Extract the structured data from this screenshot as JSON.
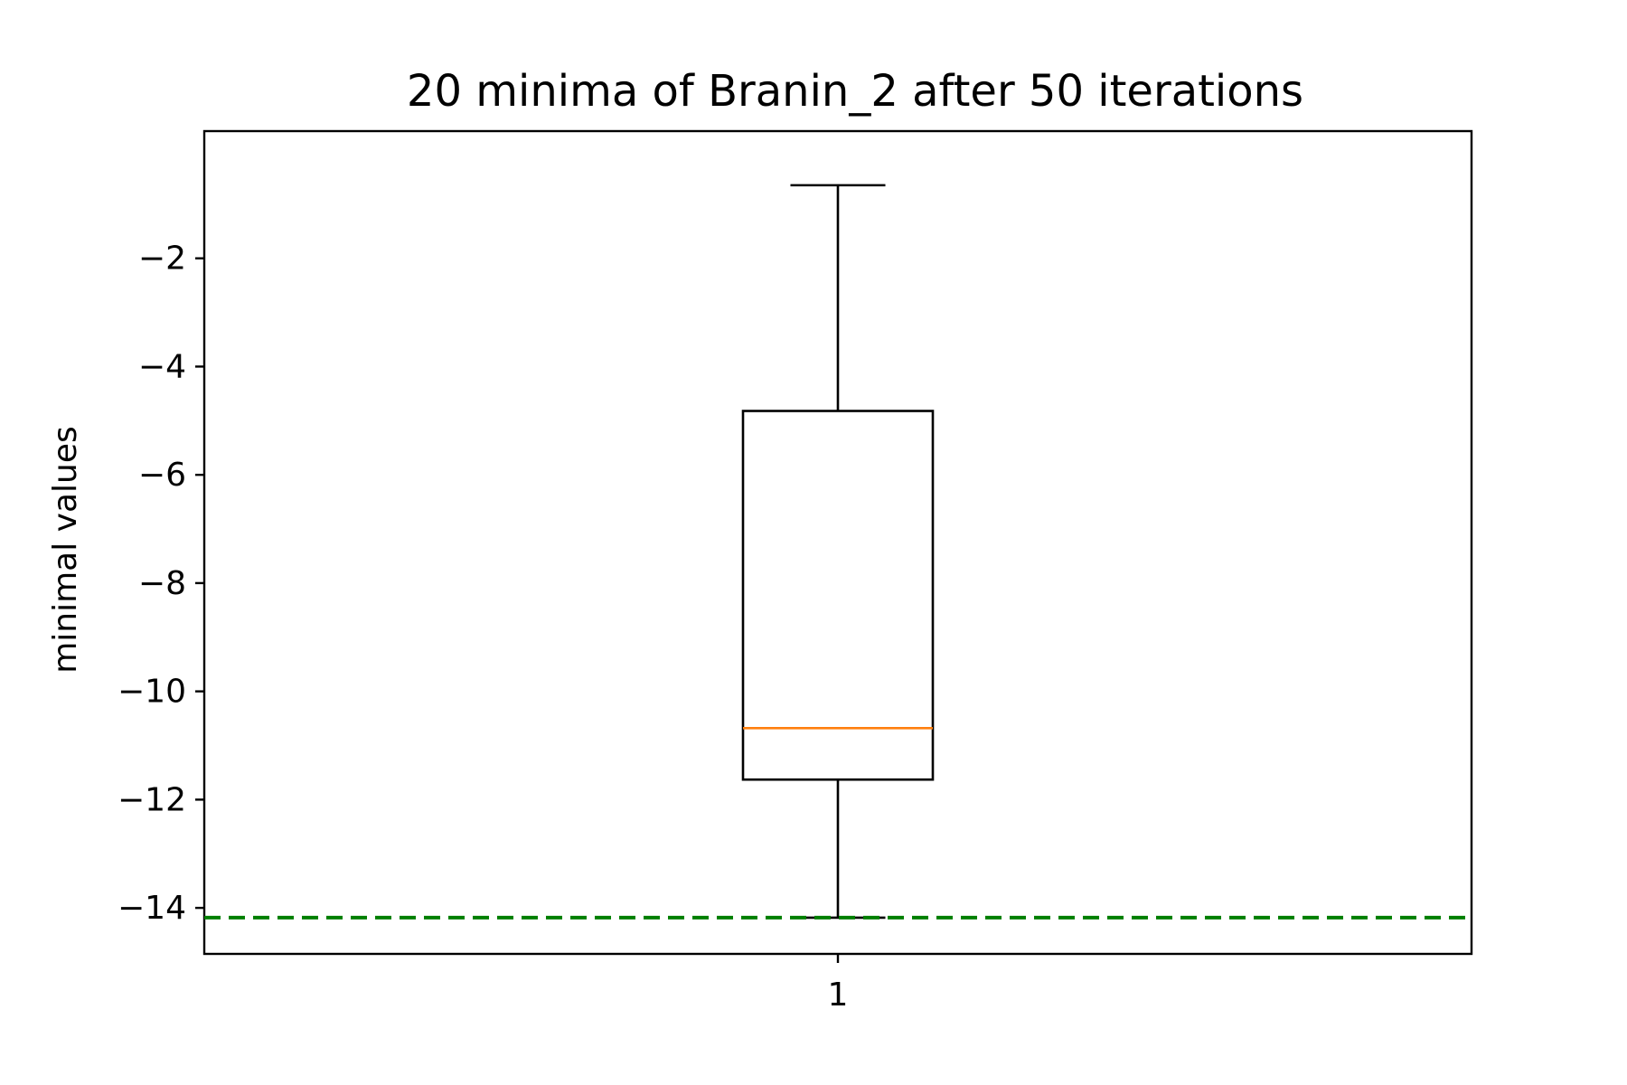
{
  "chart_data": {
    "type": "box",
    "title": "20 minima of Branin_2 after 50 iterations",
    "xlabel": "",
    "ylabel": "minimal values",
    "x_categories": [
      "1"
    ],
    "ylim": [
      -14.85,
      0.35
    ],
    "y_ticks": [
      -2,
      -4,
      -6,
      -8,
      -10,
      -12,
      -14
    ],
    "y_tick_labels": [
      "−2",
      "−4",
      "−6",
      "−8",
      "−10",
      "−12",
      "−14"
    ],
    "boxes": [
      {
        "category": "1",
        "whisker_high": -0.65,
        "q3": -4.82,
        "median": -10.68,
        "q1": -11.63,
        "whisker_low": -14.18
      }
    ],
    "reference_line": {
      "y": -14.18,
      "style": "dashed",
      "color": "#007f00"
    },
    "colors": {
      "box": "#000000",
      "median": "#ff7f0e",
      "reference": "#007f00"
    },
    "grid": false,
    "legend": "none"
  }
}
